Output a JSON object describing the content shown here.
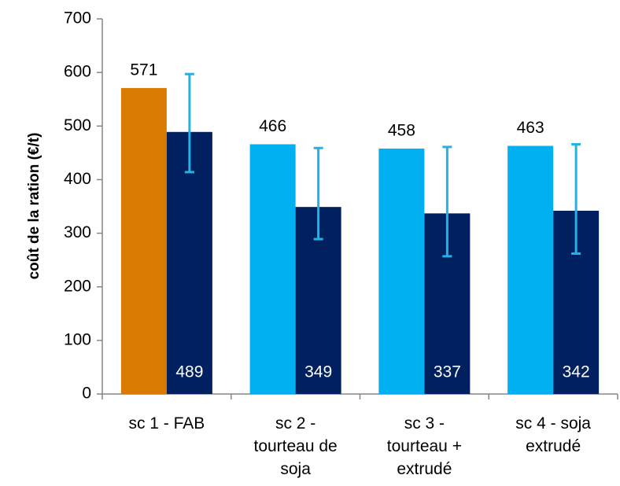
{
  "chart_data": {
    "type": "bar",
    "y_label": "coût de la ration (€/t)",
    "categories": [
      "sc 1 - FAB",
      "sc 2 -\ntourteau de\nsoja",
      "sc 3 -\ntourteau +\nextrudé",
      "sc 4 - soja\nextrudé"
    ],
    "series": [
      {
        "colors": [
          "#d97b00",
          "#00b0f0",
          "#00b0f0",
          "#00b0f0"
        ],
        "values": [
          571,
          466,
          458,
          463
        ]
      },
      {
        "color": "#002060",
        "values": [
          489,
          349,
          337,
          342
        ],
        "error_plus": [
          108,
          110,
          124,
          124
        ],
        "error_minus": [
          75,
          60,
          80,
          80
        ],
        "error_color": "#1fb4e8"
      }
    ],
    "ylim": [
      0,
      700
    ],
    "yticks": [
      0,
      100,
      200,
      300,
      400,
      500,
      600,
      700
    ],
    "grid": false
  }
}
